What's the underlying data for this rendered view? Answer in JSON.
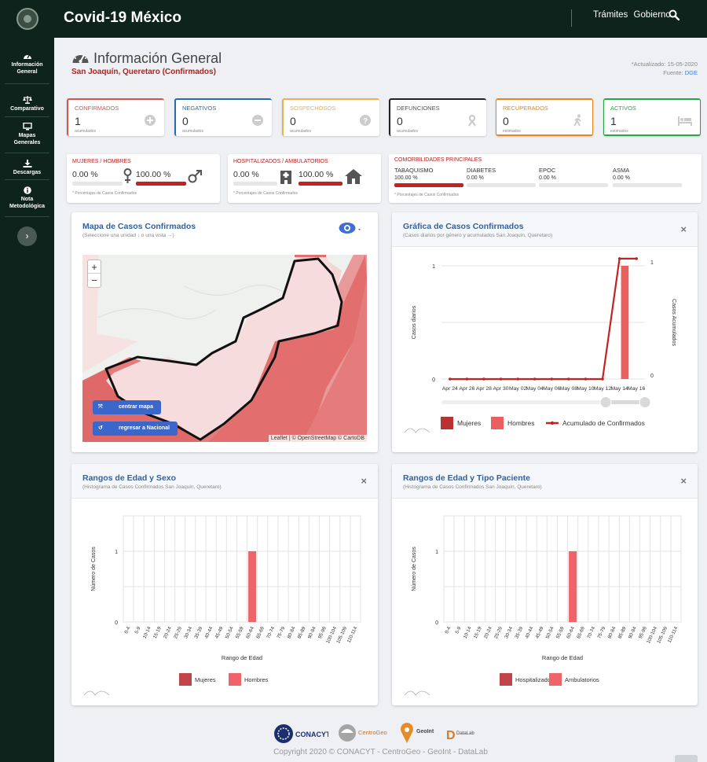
{
  "topbar": {
    "title": "Covid-19 México",
    "links": [
      "Trámites",
      "Gobierno"
    ]
  },
  "sidebar": {
    "items": [
      {
        "label_1": "Información",
        "label_2": "General"
      },
      {
        "label_1": "Comparativo",
        "label_2": ""
      },
      {
        "label_1": "Mapas",
        "label_2": "Generales"
      },
      {
        "label_1": "Descargas",
        "label_2": ""
      },
      {
        "label_1": "Nota",
        "label_2": "Metodológica"
      }
    ],
    "toggle": "›"
  },
  "header": {
    "title": "Información General",
    "subtitle": "San Joaquín, Queretaro (Confirmados)",
    "updated": "*Actualizado: 15-05-2020",
    "source_label": "Fuente:",
    "source_link": "DGE"
  },
  "kpis": [
    {
      "label": "CONFIRMADOS",
      "value": "1",
      "unit": "acumulados",
      "color": "#d9534f",
      "icon": "plus-circle-icon"
    },
    {
      "label": "NEGATIVOS",
      "value": "0",
      "unit": "acumulados",
      "color": "#2a6ab0",
      "icon": "minus-circle-icon"
    },
    {
      "label": "SOSPECHOSOS",
      "value": "0",
      "unit": "acumulados",
      "color": "#f0ad4e",
      "icon": "question-circle-icon"
    },
    {
      "label": "DEFUNCIONES",
      "value": "0",
      "unit": "acumulados",
      "color": "#222222",
      "icon": "ribbon-icon"
    },
    {
      "label": "RECUPERADOS",
      "value": "0",
      "unit": "estimados",
      "color": "#e8861c",
      "icon": "walking-icon"
    },
    {
      "label": "ACTIVOS",
      "value": "1",
      "unit": "estimados",
      "color": "#28a745",
      "icon": "bed-icon"
    }
  ],
  "sexo": {
    "label": "MUJERES / HOMBRES",
    "mujeres_pct": "0.00 %",
    "hombres_pct": "100.00 %",
    "mujeres_frac": 0.0,
    "hombres_frac": 1.0,
    "note": "* Porcentajes de Casos Confirmados"
  },
  "hospital": {
    "label": "HOSPITALIZADOS / AMBULATORIOS",
    "hosp_pct": "0.00 %",
    "amb_pct": "100.00 %",
    "hosp_frac": 0.0,
    "amb_frac": 1.0,
    "note": "* Porcentajes de Casos Confirmados"
  },
  "comorbilidades": {
    "label": "COMORBILIDADES PRINCIPALES",
    "items": [
      {
        "name": "TABAQUISMO",
        "pct": "100.00 %",
        "frac": 1.0
      },
      {
        "name": "DIABETES",
        "pct": "0.00 %",
        "frac": 0.0
      },
      {
        "name": "EPOC",
        "pct": "0.00 %",
        "frac": 0.0
      },
      {
        "name": "ASMA",
        "pct": "0.00 %",
        "frac": 0.0
      }
    ],
    "note": "* Porcentajes de Casos Confirmados"
  },
  "map_panel": {
    "title": "Mapa de Casos Confirmados",
    "subtitle": "(Seleccione una unidad ↓ o una vista →)",
    "zoom_in": "+",
    "zoom_out": "−",
    "btn_center": "centrar mapa",
    "btn_national": "regresar a Nacional",
    "attribution": "Leaflet | © OpenStreetMap © CartoDB"
  },
  "line_panel": {
    "title": "Gráfica de Casos Confirmados",
    "subtitle": "(Casos diarios por género y acumulados San Joaquín, Queretaro)",
    "close": "×"
  },
  "age_sex_panel": {
    "title": "Rangos de Edad y Sexo",
    "subtitle": "(Histograma de Casos Confirmados San Joaquín, Queretaro)",
    "close": "×"
  },
  "age_type_panel": {
    "title": "Rangos de Edad y Tipo Paciente",
    "subtitle": "(Histograma de Casos Confirmados San Joaquín, Queretaro)",
    "close": "×"
  },
  "chart_data": [
    {
      "type": "bar",
      "title": "Gráfica de Casos Confirmados",
      "categories": [
        "Apr 24",
        "Apr 26",
        "Apr 28",
        "Apr 30",
        "May 02",
        "May 04",
        "May 06",
        "May 08",
        "May 10",
        "May 12",
        "May 14",
        "May 16"
      ],
      "x_ticks": [
        "Apr 24",
        "Apr 26",
        "Apr 28",
        "Apr 30",
        "May 02",
        "May 04",
        "May 06",
        "May 08",
        "May 10",
        "May 12",
        "May 14",
        "May 16"
      ],
      "series": [
        {
          "name": "Mujeres",
          "values": [
            0,
            0,
            0,
            0,
            0,
            0,
            0,
            0,
            0,
            0,
            0,
            0
          ],
          "color": "#b83232"
        },
        {
          "name": "Hombres",
          "values": [
            0,
            0,
            0,
            0,
            0,
            0,
            0,
            0,
            0,
            0,
            1,
            0
          ],
          "color": "#ea5f5f"
        },
        {
          "name": "Acumulado de Confirmados",
          "values": [
            0,
            0,
            0,
            0,
            0,
            0,
            0,
            0,
            0,
            0,
            1,
            1
          ],
          "color": "#c42222"
        }
      ],
      "ylabel": "Casos diarios",
      "y2label": "Casos Acumulados",
      "ylim": [
        0,
        1
      ],
      "legend": "bottom"
    },
    {
      "type": "bar",
      "title": "Rangos de Edad y Sexo",
      "categories": [
        "0-4",
        "5-9",
        "10-14",
        "15-19",
        "20-24",
        "25-29",
        "30-34",
        "35-39",
        "40-44",
        "45-49",
        "50-54",
        "55-59",
        "60-64",
        "65-69",
        "70-74",
        "75-79",
        "80-84",
        "85-89",
        "90-94",
        "95-99",
        "100-104",
        "105-109",
        "110-114"
      ],
      "series": [
        {
          "name": "Mujeres",
          "values": [
            0,
            0,
            0,
            0,
            0,
            0,
            0,
            0,
            0,
            0,
            0,
            0,
            0,
            0,
            0,
            0,
            0,
            0,
            0,
            0,
            0,
            0,
            0
          ],
          "color": "#c0444a"
        },
        {
          "name": "Hombres",
          "values": [
            0,
            0,
            0,
            0,
            0,
            0,
            0,
            0,
            0,
            0,
            0,
            0,
            1,
            0,
            0,
            0,
            0,
            0,
            0,
            0,
            0,
            0,
            0
          ],
          "color": "#ee6468"
        }
      ],
      "xlabel": "Rango de Edad",
      "ylabel": "Número de Casos",
      "ylim": [
        0,
        1
      ],
      "legend": "bottom"
    },
    {
      "type": "bar",
      "title": "Rangos de Edad y Tipo Paciente",
      "categories": [
        "0-4",
        "5-9",
        "10-14",
        "15-19",
        "20-24",
        "25-29",
        "30-34",
        "35-39",
        "40-44",
        "45-49",
        "50-54",
        "55-59",
        "60-64",
        "65-69",
        "70-74",
        "75-79",
        "80-84",
        "85-89",
        "90-94",
        "95-99",
        "100-104",
        "105-109",
        "110-114"
      ],
      "series": [
        {
          "name": "Hospitalizados",
          "values": [
            0,
            0,
            0,
            0,
            0,
            0,
            0,
            0,
            0,
            0,
            0,
            0,
            0,
            0,
            0,
            0,
            0,
            0,
            0,
            0,
            0,
            0,
            0
          ],
          "color": "#c0444a"
        },
        {
          "name": "Ambulatorios",
          "values": [
            0,
            0,
            0,
            0,
            0,
            0,
            0,
            0,
            0,
            0,
            0,
            0,
            1,
            0,
            0,
            0,
            0,
            0,
            0,
            0,
            0,
            0,
            0
          ],
          "color": "#ee6468"
        }
      ],
      "xlabel": "Rango de Edad",
      "ylabel": "Número de Casos",
      "ylim": [
        0,
        1
      ],
      "legend": "bottom"
    }
  ],
  "footer": {
    "logos": [
      "CONACYT",
      "CentroGeo",
      "GeoInt",
      "DataLab"
    ],
    "copyright": "Copyright 2020 © CONACYT - CentroGeo - GeoInt - DataLab"
  }
}
